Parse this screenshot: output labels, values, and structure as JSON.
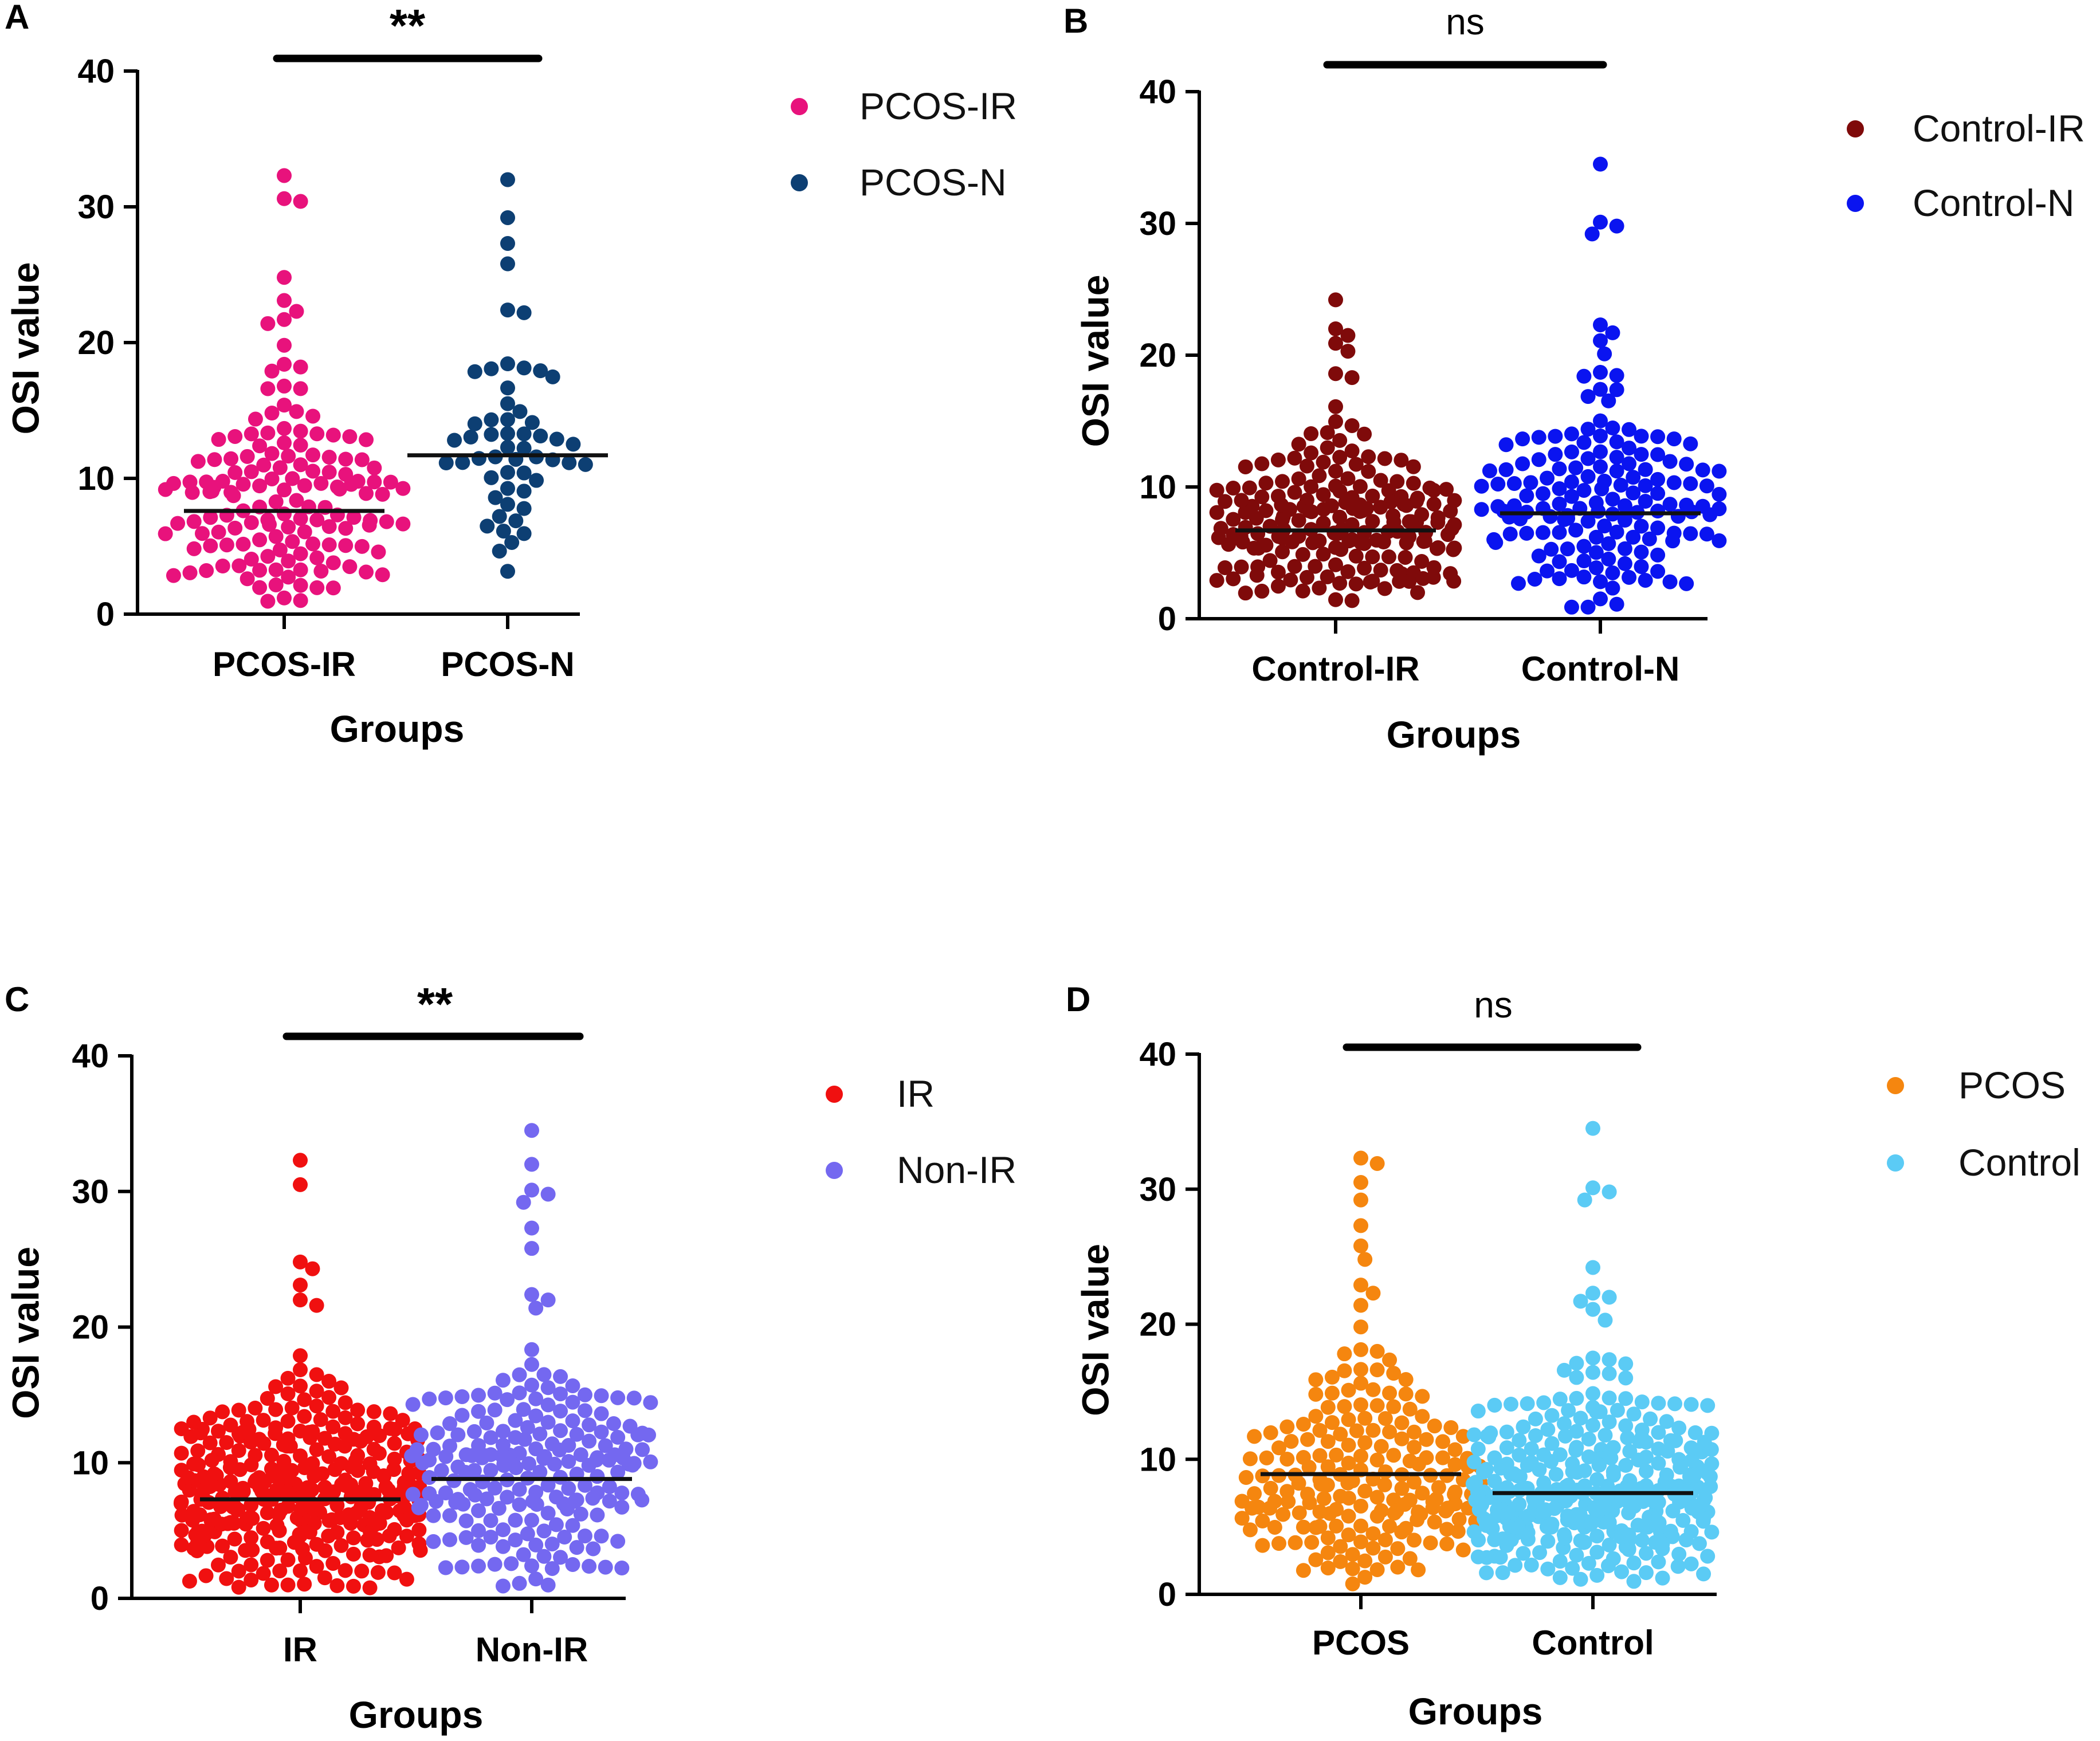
{
  "chart_data": [
    {
      "panel": "A",
      "type": "scatter",
      "subtype": "dot-plot",
      "significance": "**",
      "xlabel": "Groups",
      "ylabel": "OSI value",
      "ylim": [
        0,
        40
      ],
      "yticks": [
        0,
        10,
        20,
        30,
        40
      ],
      "categories": [
        "PCOS-IR",
        "PCOS-N"
      ],
      "legend_position": "right",
      "series": [
        {
          "name": "PCOS-IR",
          "color": "#E8127C",
          "n": 150,
          "mean": 7.6,
          "min": 0.6,
          "max": 32.3,
          "spread": 4.6,
          "outliers": [
            32.3,
            30.6,
            30.4,
            24.8,
            23.1,
            22.3,
            21.7,
            21.4,
            19.8,
            18.4,
            18.2,
            17.9
          ]
        },
        {
          "name": "PCOS-N",
          "color": "#0D3F73",
          "n": 55,
          "mean": 11.7,
          "min": 1.5,
          "max": 32.0,
          "spread": 5.0,
          "outliers": [
            32.0,
            29.2,
            27.3,
            25.8,
            22.4,
            22.2
          ]
        }
      ]
    },
    {
      "panel": "B",
      "type": "scatter",
      "subtype": "dot-plot",
      "significance": "ns",
      "xlabel": "Groups",
      "ylabel": "OSI value",
      "ylim": [
        0,
        40
      ],
      "yticks": [
        0,
        10,
        20,
        30,
        40
      ],
      "categories": [
        "Control-IR",
        "Control-N"
      ],
      "legend_position": "right",
      "series": [
        {
          "name": "Control-IR",
          "color": "#7F0A0A",
          "n": 200,
          "mean": 6.7,
          "min": 1.2,
          "max": 24.2,
          "spread": 3.5,
          "outliers": [
            24.2,
            22.0,
            21.5,
            20.9,
            20.3,
            18.6,
            18.3
          ]
        },
        {
          "name": "Control-N",
          "color": "#0A14F0",
          "n": 160,
          "mean": 8.0,
          "min": 0.8,
          "max": 34.5,
          "spread": 4.2,
          "outliers": [
            34.5,
            30.1,
            29.8,
            29.2,
            22.3,
            21.7,
            21.1,
            20.1,
            18.7,
            18.4
          ]
        }
      ]
    },
    {
      "panel": "C",
      "type": "scatter",
      "subtype": "dot-plot",
      "significance": "**",
      "xlabel": "Groups",
      "ylabel": "OSI value",
      "ylim": [
        0,
        40
      ],
      "yticks": [
        0,
        10,
        20,
        30,
        40
      ],
      "categories": [
        "IR",
        "Non-IR"
      ],
      "legend_position": "right",
      "series": [
        {
          "name": "IR",
          "color": "#F01010",
          "n": 350,
          "mean": 7.3,
          "min": 0.6,
          "max": 32.3,
          "spread": 4.0,
          "outliers": [
            32.3,
            30.5,
            24.8,
            24.3,
            23.1,
            22.0,
            21.6
          ]
        },
        {
          "name": "Non-IR",
          "color": "#7468F0",
          "n": 215,
          "mean": 8.8,
          "min": 0.8,
          "max": 34.5,
          "spread": 4.6,
          "outliers": [
            34.5,
            32.0,
            30.1,
            29.8,
            29.2,
            27.3,
            25.8,
            22.4,
            22.0,
            21.4
          ]
        }
      ]
    },
    {
      "panel": "D",
      "type": "scatter",
      "subtype": "dot-plot",
      "significance": "ns",
      "xlabel": "Groups",
      "ylabel": "OSI value",
      "ylim": [
        0,
        40
      ],
      "yticks": [
        0,
        10,
        20,
        30,
        40
      ],
      "categories": [
        "PCOS",
        "Control"
      ],
      "legend_position": "right",
      "series": [
        {
          "name": "PCOS",
          "color": "#F5860F",
          "n": 205,
          "mean": 8.9,
          "min": 0.6,
          "max": 32.3,
          "spread": 4.8,
          "outliers": [
            32.3,
            31.9,
            30.5,
            29.2,
            27.3,
            25.8,
            24.8,
            22.9,
            22.3,
            21.4,
            19.8
          ]
        },
        {
          "name": "Control",
          "color": "#5BCBF5",
          "n": 360,
          "mean": 7.5,
          "min": 0.8,
          "max": 34.5,
          "spread": 4.0,
          "outliers": [
            34.5,
            30.1,
            29.8,
            29.2,
            24.2,
            22.3,
            22.0,
            21.7,
            21.1,
            20.3
          ]
        }
      ]
    }
  ]
}
